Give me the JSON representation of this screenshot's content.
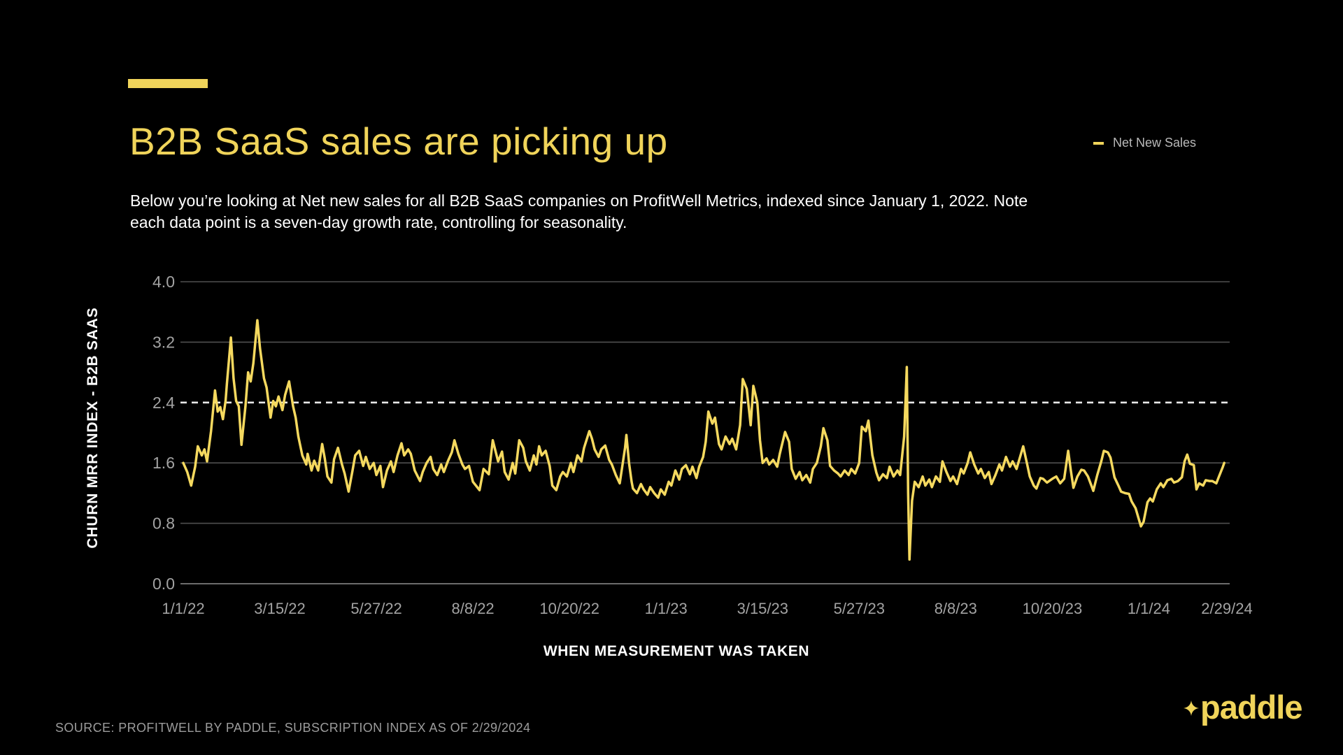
{
  "header": {
    "title": "B2B SaaS sales are picking up",
    "subtitle_line1": "Below you’re looking at Net new sales for all B2B SaaS companies on ProfitWell Metrics, indexed since January 1, 2022. Note",
    "subtitle_line2": "each data point is a seven-day growth rate, controlling for seasonality."
  },
  "legend": {
    "label": "Net New Sales"
  },
  "footer": {
    "source": "SOURCE: PROFITWELL BY PADDLE, SUBSCRIPTION INDEX AS OF 2/29/2024",
    "logo_text": "paddle"
  },
  "colors": {
    "background": "#000000",
    "accent_yellow": "#F0D45A",
    "line": "#F5D95F",
    "grid_line": "#4f4f4f",
    "axis_line": "#8f8f8f",
    "reference_line": "#e8e8e8",
    "tick_label": "#a3a3a3",
    "text_white": "#ffffff"
  },
  "chart_data": {
    "type": "line",
    "title": "B2B SaaS sales are picking up",
    "xlabel": "WHEN MEASUREMENT WAS TAKEN",
    "ylabel": "CHURN MRR INDEX - B2B SAAS",
    "legend_position": "top-right",
    "grid": true,
    "ylim": [
      0,
      4.0
    ],
    "y_ticks": [
      0.0,
      0.8,
      1.6,
      2.4,
      3.2,
      4.0
    ],
    "reference_line": 2.4,
    "x_total_days": 789,
    "x_tick_labels": [
      "1/1/22",
      "3/15/22",
      "5/27/22",
      "8/8/22",
      "10/20/22",
      "1/1/23",
      "3/15/23",
      "5/27/23",
      "8/8/23",
      "10/20/23",
      "1/1/24",
      "2/29/24"
    ],
    "x_tick_days": [
      0,
      73,
      146,
      219,
      292,
      365,
      438,
      511,
      584,
      657,
      730,
      789
    ],
    "series": [
      {
        "name": "Net New Sales",
        "points": [
          [
            0,
            1.6
          ],
          [
            3,
            1.48
          ],
          [
            6,
            1.3
          ],
          [
            9,
            1.55
          ],
          [
            11,
            1.82
          ],
          [
            14,
            1.7
          ],
          [
            16,
            1.78
          ],
          [
            18,
            1.62
          ],
          [
            21,
            2.02
          ],
          [
            24,
            2.56
          ],
          [
            26,
            2.28
          ],
          [
            28,
            2.34
          ],
          [
            30,
            2.18
          ],
          [
            32,
            2.42
          ],
          [
            33,
            2.65
          ],
          [
            36,
            3.26
          ],
          [
            38,
            2.72
          ],
          [
            40,
            2.42
          ],
          [
            42,
            2.35
          ],
          [
            44,
            1.84
          ],
          [
            47,
            2.35
          ],
          [
            49,
            2.8
          ],
          [
            51,
            2.68
          ],
          [
            53,
            2.92
          ],
          [
            56,
            3.49
          ],
          [
            58,
            3.12
          ],
          [
            61,
            2.72
          ],
          [
            63,
            2.6
          ],
          [
            66,
            2.2
          ],
          [
            68,
            2.42
          ],
          [
            70,
            2.35
          ],
          [
            72,
            2.48
          ],
          [
            75,
            2.3
          ],
          [
            77,
            2.5
          ],
          [
            80,
            2.68
          ],
          [
            83,
            2.35
          ],
          [
            85,
            2.2
          ],
          [
            87,
            1.95
          ],
          [
            90,
            1.7
          ],
          [
            93,
            1.58
          ],
          [
            94,
            1.72
          ],
          [
            97,
            1.5
          ],
          [
            99,
            1.63
          ],
          [
            102,
            1.5
          ],
          [
            105,
            1.85
          ],
          [
            107,
            1.66
          ],
          [
            109,
            1.42
          ],
          [
            112,
            1.34
          ],
          [
            114,
            1.65
          ],
          [
            117,
            1.8
          ],
          [
            120,
            1.58
          ],
          [
            122,
            1.46
          ],
          [
            125,
            1.22
          ],
          [
            128,
            1.5
          ],
          [
            130,
            1.7
          ],
          [
            133,
            1.76
          ],
          [
            136,
            1.56
          ],
          [
            138,
            1.68
          ],
          [
            141,
            1.52
          ],
          [
            144,
            1.6
          ],
          [
            146,
            1.44
          ],
          [
            149,
            1.56
          ],
          [
            151,
            1.28
          ],
          [
            154,
            1.5
          ],
          [
            157,
            1.62
          ],
          [
            159,
            1.48
          ],
          [
            162,
            1.7
          ],
          [
            165,
            1.86
          ],
          [
            167,
            1.7
          ],
          [
            170,
            1.78
          ],
          [
            172,
            1.72
          ],
          [
            175,
            1.5
          ],
          [
            179,
            1.36
          ],
          [
            181,
            1.48
          ],
          [
            184,
            1.6
          ],
          [
            187,
            1.68
          ],
          [
            189,
            1.52
          ],
          [
            192,
            1.44
          ],
          [
            195,
            1.58
          ],
          [
            197,
            1.48
          ],
          [
            200,
            1.62
          ],
          [
            203,
            1.74
          ],
          [
            205,
            1.9
          ],
          [
            208,
            1.72
          ],
          [
            211,
            1.58
          ],
          [
            213,
            1.52
          ],
          [
            216,
            1.56
          ],
          [
            219,
            1.35
          ],
          [
            224,
            1.24
          ],
          [
            227,
            1.52
          ],
          [
            231,
            1.45
          ],
          [
            234,
            1.9
          ],
          [
            238,
            1.62
          ],
          [
            241,
            1.75
          ],
          [
            243,
            1.48
          ],
          [
            246,
            1.38
          ],
          [
            249,
            1.6
          ],
          [
            251,
            1.46
          ],
          [
            254,
            1.9
          ],
          [
            257,
            1.8
          ],
          [
            259,
            1.62
          ],
          [
            262,
            1.5
          ],
          [
            265,
            1.7
          ],
          [
            267,
            1.58
          ],
          [
            269,
            1.82
          ],
          [
            271,
            1.7
          ],
          [
            274,
            1.76
          ],
          [
            277,
            1.56
          ],
          [
            279,
            1.3
          ],
          [
            282,
            1.24
          ],
          [
            285,
            1.42
          ],
          [
            287,
            1.48
          ],
          [
            290,
            1.42
          ],
          [
            293,
            1.6
          ],
          [
            295,
            1.48
          ],
          [
            298,
            1.7
          ],
          [
            301,
            1.62
          ],
          [
            303,
            1.8
          ],
          [
            307,
            2.02
          ],
          [
            309,
            1.92
          ],
          [
            311,
            1.78
          ],
          [
            314,
            1.68
          ],
          [
            316,
            1.78
          ],
          [
            319,
            1.83
          ],
          [
            322,
            1.64
          ],
          [
            324,
            1.58
          ],
          [
            327,
            1.44
          ],
          [
            330,
            1.33
          ],
          [
            334,
            1.8
          ],
          [
            335,
            1.97
          ],
          [
            337,
            1.6
          ],
          [
            339,
            1.35
          ],
          [
            340,
            1.26
          ],
          [
            343,
            1.2
          ],
          [
            346,
            1.32
          ],
          [
            348,
            1.25
          ],
          [
            351,
            1.18
          ],
          [
            353,
            1.28
          ],
          [
            356,
            1.2
          ],
          [
            359,
            1.14
          ],
          [
            361,
            1.25
          ],
          [
            364,
            1.18
          ],
          [
            367,
            1.35
          ],
          [
            369,
            1.3
          ],
          [
            372,
            1.5
          ],
          [
            375,
            1.38
          ],
          [
            377,
            1.52
          ],
          [
            380,
            1.57
          ],
          [
            383,
            1.45
          ],
          [
            385,
            1.55
          ],
          [
            388,
            1.4
          ],
          [
            390,
            1.55
          ],
          [
            393,
            1.68
          ],
          [
            395,
            1.88
          ],
          [
            397,
            2.28
          ],
          [
            400,
            2.12
          ],
          [
            402,
            2.2
          ],
          [
            405,
            1.85
          ],
          [
            407,
            1.78
          ],
          [
            410,
            1.95
          ],
          [
            413,
            1.85
          ],
          [
            415,
            1.92
          ],
          [
            418,
            1.78
          ],
          [
            421,
            2.1
          ],
          [
            423,
            2.71
          ],
          [
            426,
            2.58
          ],
          [
            429,
            2.1
          ],
          [
            431,
            2.62
          ],
          [
            434,
            2.4
          ],
          [
            436,
            1.9
          ],
          [
            438,
            1.6
          ],
          [
            441,
            1.66
          ],
          [
            443,
            1.58
          ],
          [
            446,
            1.64
          ],
          [
            449,
            1.55
          ],
          [
            451,
            1.72
          ],
          [
            455,
            2.01
          ],
          [
            458,
            1.88
          ],
          [
            460,
            1.52
          ],
          [
            463,
            1.39
          ],
          [
            466,
            1.48
          ],
          [
            468,
            1.37
          ],
          [
            471,
            1.44
          ],
          [
            474,
            1.34
          ],
          [
            476,
            1.52
          ],
          [
            479,
            1.6
          ],
          [
            482,
            1.82
          ],
          [
            484,
            2.06
          ],
          [
            487,
            1.9
          ],
          [
            489,
            1.56
          ],
          [
            492,
            1.5
          ],
          [
            495,
            1.46
          ],
          [
            497,
            1.42
          ],
          [
            500,
            1.5
          ],
          [
            503,
            1.44
          ],
          [
            505,
            1.52
          ],
          [
            508,
            1.46
          ],
          [
            511,
            1.6
          ],
          [
            513,
            2.08
          ],
          [
            516,
            2.02
          ],
          [
            518,
            2.16
          ],
          [
            521,
            1.7
          ],
          [
            524,
            1.47
          ],
          [
            526,
            1.37
          ],
          [
            529,
            1.45
          ],
          [
            532,
            1.4
          ],
          [
            534,
            1.55
          ],
          [
            537,
            1.42
          ],
          [
            540,
            1.5
          ],
          [
            542,
            1.44
          ],
          [
            545,
            1.95
          ],
          [
            547,
            2.87
          ],
          [
            548,
            1.2
          ],
          [
            549,
            0.32
          ],
          [
            551,
            1.1
          ],
          [
            553,
            1.35
          ],
          [
            556,
            1.28
          ],
          [
            559,
            1.42
          ],
          [
            561,
            1.3
          ],
          [
            564,
            1.38
          ],
          [
            566,
            1.28
          ],
          [
            569,
            1.42
          ],
          [
            572,
            1.35
          ],
          [
            574,
            1.62
          ],
          [
            577,
            1.48
          ],
          [
            580,
            1.36
          ],
          [
            582,
            1.42
          ],
          [
            585,
            1.32
          ],
          [
            588,
            1.52
          ],
          [
            590,
            1.46
          ],
          [
            593,
            1.6
          ],
          [
            595,
            1.74
          ],
          [
            598,
            1.58
          ],
          [
            601,
            1.46
          ],
          [
            603,
            1.52
          ],
          [
            606,
            1.4
          ],
          [
            609,
            1.48
          ],
          [
            611,
            1.32
          ],
          [
            614,
            1.44
          ],
          [
            617,
            1.58
          ],
          [
            619,
            1.5
          ],
          [
            622,
            1.68
          ],
          [
            625,
            1.55
          ],
          [
            627,
            1.62
          ],
          [
            630,
            1.52
          ],
          [
            633,
            1.7
          ],
          [
            635,
            1.82
          ],
          [
            638,
            1.58
          ],
          [
            640,
            1.42
          ],
          [
            643,
            1.3
          ],
          [
            645,
            1.26
          ],
          [
            648,
            1.4
          ],
          [
            650,
            1.39
          ],
          [
            653,
            1.34
          ],
          [
            657,
            1.39
          ],
          [
            660,
            1.42
          ],
          [
            663,
            1.33
          ],
          [
            666,
            1.39
          ],
          [
            669,
            1.76
          ],
          [
            671,
            1.5
          ],
          [
            673,
            1.27
          ],
          [
            676,
            1.42
          ],
          [
            679,
            1.51
          ],
          [
            681,
            1.5
          ],
          [
            684,
            1.42
          ],
          [
            687,
            1.28
          ],
          [
            688,
            1.23
          ],
          [
            691,
            1.44
          ],
          [
            694,
            1.62
          ],
          [
            696,
            1.76
          ],
          [
            699,
            1.74
          ],
          [
            701,
            1.67
          ],
          [
            704,
            1.41
          ],
          [
            707,
            1.3
          ],
          [
            709,
            1.22
          ],
          [
            712,
            1.2
          ],
          [
            715,
            1.19
          ],
          [
            717,
            1.09
          ],
          [
            720,
            1.0
          ],
          [
            722,
            0.88
          ],
          [
            724,
            0.76
          ],
          [
            726,
            0.82
          ],
          [
            729,
            1.08
          ],
          [
            731,
            1.13
          ],
          [
            733,
            1.09
          ],
          [
            736,
            1.25
          ],
          [
            739,
            1.33
          ],
          [
            741,
            1.28
          ],
          [
            744,
            1.37
          ],
          [
            747,
            1.39
          ],
          [
            749,
            1.34
          ],
          [
            752,
            1.36
          ],
          [
            755,
            1.41
          ],
          [
            757,
            1.62
          ],
          [
            759,
            1.71
          ],
          [
            761,
            1.59
          ],
          [
            764,
            1.57
          ],
          [
            766,
            1.25
          ],
          [
            768,
            1.33
          ],
          [
            771,
            1.3
          ],
          [
            773,
            1.37
          ],
          [
            776,
            1.36
          ],
          [
            778,
            1.36
          ],
          [
            781,
            1.33
          ],
          [
            783,
            1.42
          ],
          [
            786,
            1.55
          ],
          [
            787,
            1.6
          ]
        ]
      }
    ]
  }
}
